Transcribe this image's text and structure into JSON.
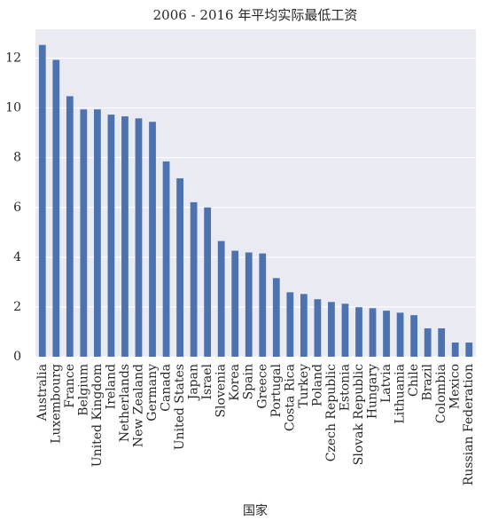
{
  "chart_data": {
    "type": "bar",
    "title": "2006 - 2016 年平均实际最低工资",
    "x_label": "国家",
    "categories": [
      "Australia",
      "Luxembourg",
      "France",
      "Belgium",
      "United Kingdom",
      "Ireland",
      "Netherlands",
      "New Zealand",
      "Germany",
      "Canada",
      "United States",
      "Japan",
      "Israel",
      "Slovenia",
      "Korea",
      "Spain",
      "Greece",
      "Portugal",
      "Costa Rica",
      "Turkey",
      "Poland",
      "Czech Republic",
      "Estonia",
      "Slovak Republic",
      "Hungary",
      "Latvia",
      "Lithuania",
      "Chile",
      "Brazil",
      "Colombia",
      "Mexico",
      "Russian Federation"
    ],
    "values": [
      12.53,
      11.93,
      10.47,
      9.94,
      9.94,
      9.73,
      9.66,
      9.58,
      9.44,
      7.85,
      7.17,
      6.21,
      6.0,
      4.65,
      4.26,
      4.19,
      4.15,
      3.16,
      2.59,
      2.52,
      2.31,
      2.2,
      2.13,
      1.99,
      1.95,
      1.85,
      1.77,
      1.67,
      1.14,
      1.14,
      0.57,
      0.57
    ],
    "color": "#4c72b0",
    "ylim": [
      0,
      13.16
    ],
    "yticks": [
      0,
      2,
      4,
      6,
      8,
      10,
      12
    ],
    "grid": true
  }
}
